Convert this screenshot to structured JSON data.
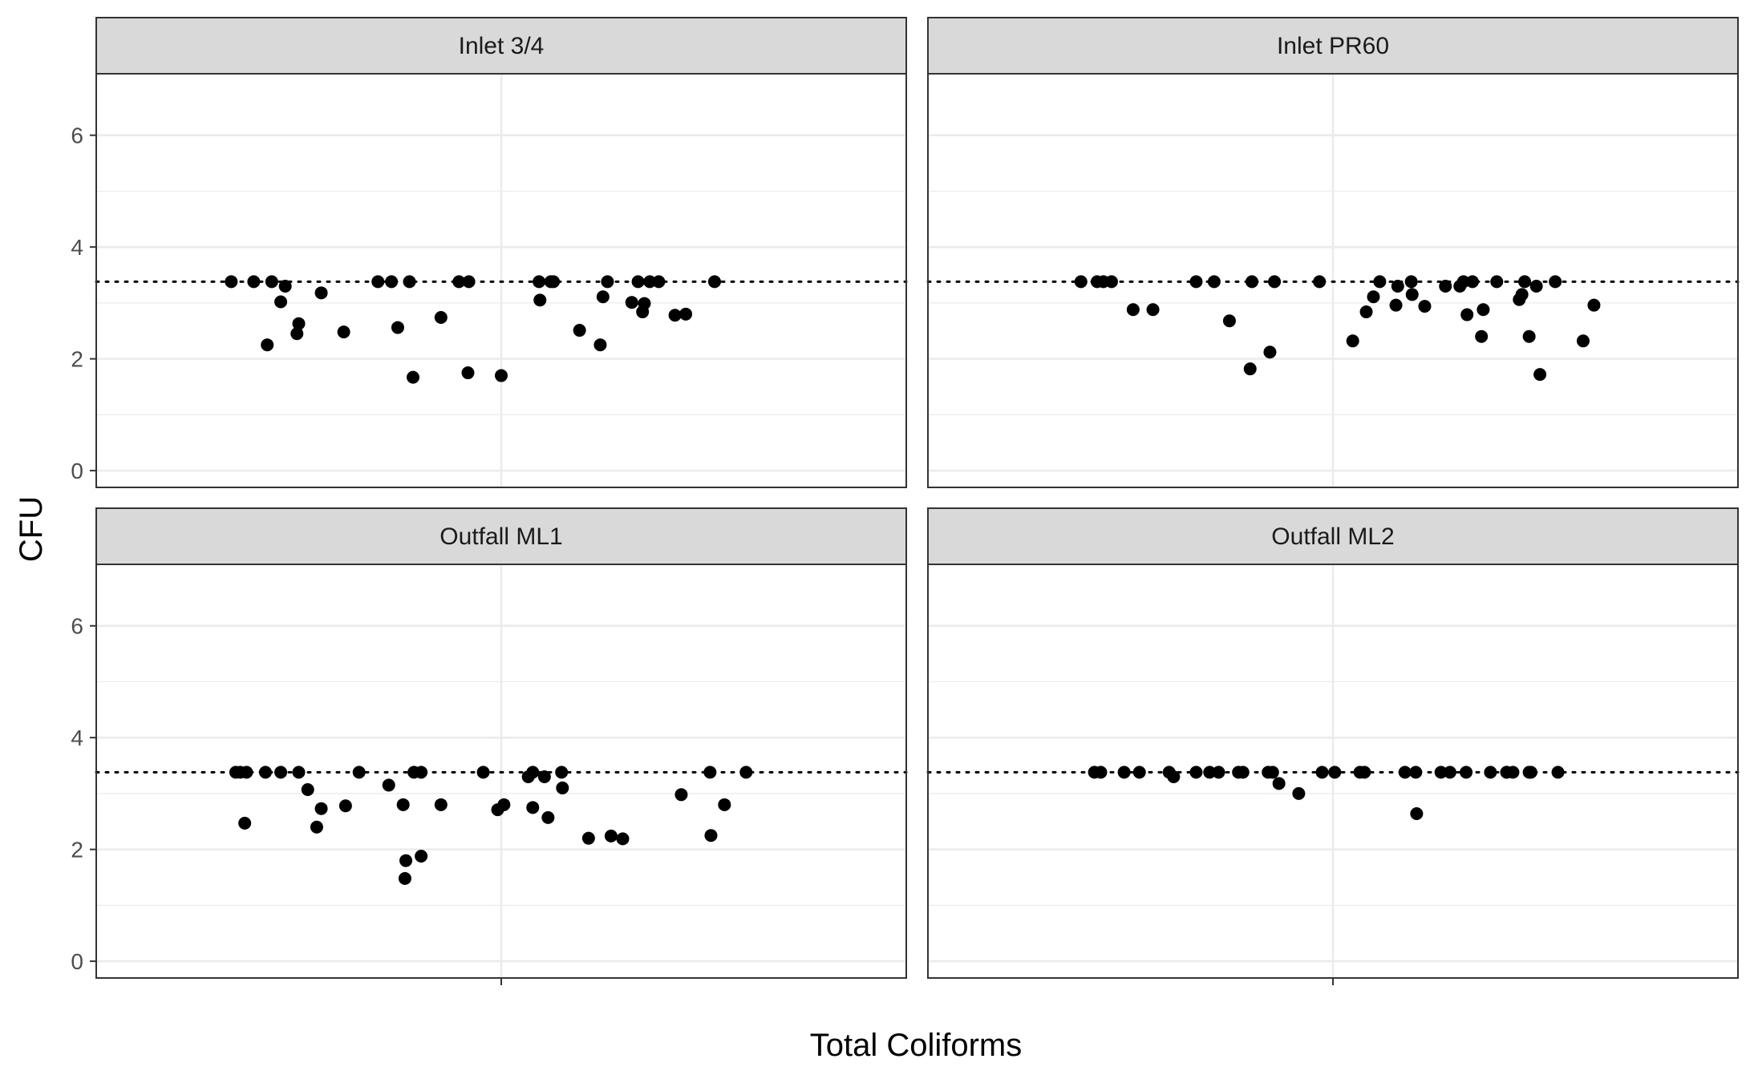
{
  "chart_data": {
    "type": "scatter",
    "subtype": "faceted jitter strip plot",
    "xlabel": "Total Coliforms",
    "ylabel": "CFU",
    "ylim": [
      -0.3,
      7.1
    ],
    "yticks": [
      0,
      2,
      4,
      6
    ],
    "grid": true,
    "theme": "black-and-white",
    "reference_line": {
      "y": 3.38,
      "style": "dotted",
      "color": "#000000"
    },
    "facet_layout": {
      "rows": 2,
      "cols": 2
    },
    "jitter_range": [
      -0.45,
      0.45
    ],
    "colors": {
      "point": "#000000",
      "strip_fill": "#d9d9d9",
      "border": "#333333",
      "grid": "#ebebeb"
    },
    "facets": [
      {
        "title": "Inlet 3/4",
        "points": [
          [
            -0.3,
            3.38
          ],
          [
            -0.275,
            3.38
          ],
          [
            -0.26,
            2.25
          ],
          [
            -0.255,
            3.38
          ],
          [
            -0.245,
            3.02
          ],
          [
            -0.24,
            3.3
          ],
          [
            -0.227,
            2.45
          ],
          [
            -0.225,
            2.63
          ],
          [
            -0.2,
            3.18
          ],
          [
            -0.175,
            2.48
          ],
          [
            -0.137,
            3.38
          ],
          [
            -0.122,
            3.38
          ],
          [
            -0.115,
            2.56
          ],
          [
            -0.102,
            3.38
          ],
          [
            -0.098,
            1.67
          ],
          [
            -0.067,
            2.74
          ],
          [
            -0.047,
            3.38
          ],
          [
            -0.036,
            3.38
          ],
          [
            -0.037,
            1.75
          ],
          [
            0.0,
            1.7
          ],
          [
            0.042,
            3.38
          ],
          [
            0.043,
            3.05
          ],
          [
            0.055,
            3.38
          ],
          [
            0.058,
            3.38
          ],
          [
            0.087,
            2.51
          ],
          [
            0.11,
            2.25
          ],
          [
            0.113,
            3.11
          ],
          [
            0.118,
            3.38
          ],
          [
            0.145,
            3.01
          ],
          [
            0.152,
            3.38
          ],
          [
            0.157,
            2.84
          ],
          [
            0.159,
            2.99
          ],
          [
            0.165,
            3.38
          ],
          [
            0.175,
            3.38
          ],
          [
            0.193,
            2.78
          ],
          [
            0.205,
            2.8
          ],
          [
            0.237,
            3.38
          ]
        ]
      },
      {
        "title": "Inlet PR60",
        "points": [
          [
            -0.28,
            3.38
          ],
          [
            -0.262,
            3.38
          ],
          [
            -0.255,
            3.38
          ],
          [
            -0.246,
            3.38
          ],
          [
            -0.222,
            2.88
          ],
          [
            -0.2,
            2.88
          ],
          [
            -0.152,
            3.38
          ],
          [
            -0.132,
            3.38
          ],
          [
            -0.115,
            2.68
          ],
          [
            -0.092,
            1.82
          ],
          [
            -0.09,
            3.38
          ],
          [
            -0.07,
            2.12
          ],
          [
            -0.065,
            3.38
          ],
          [
            -0.015,
            3.38
          ],
          [
            0.022,
            2.32
          ],
          [
            0.037,
            2.84
          ],
          [
            0.045,
            3.11
          ],
          [
            0.052,
            3.38
          ],
          [
            0.07,
            2.96
          ],
          [
            0.072,
            3.3
          ],
          [
            0.087,
            3.38
          ],
          [
            0.088,
            3.15
          ],
          [
            0.102,
            2.94
          ],
          [
            0.125,
            3.3
          ],
          [
            0.141,
            3.3
          ],
          [
            0.145,
            3.38
          ],
          [
            0.149,
            2.79
          ],
          [
            0.155,
            3.38
          ],
          [
            0.165,
            2.4
          ],
          [
            0.167,
            2.88
          ],
          [
            0.182,
            3.38
          ],
          [
            0.207,
            3.06
          ],
          [
            0.21,
            3.15
          ],
          [
            0.213,
            3.38
          ],
          [
            0.218,
            2.4
          ],
          [
            0.226,
            3.3
          ],
          [
            0.23,
            1.72
          ],
          [
            0.247,
            3.38
          ],
          [
            0.278,
            2.32
          ],
          [
            0.29,
            2.96
          ]
        ]
      },
      {
        "title": "Outfall ML1",
        "points": [
          [
            -0.295,
            3.38
          ],
          [
            -0.29,
            3.38
          ],
          [
            -0.285,
            2.47
          ],
          [
            -0.283,
            3.38
          ],
          [
            -0.262,
            3.38
          ],
          [
            -0.245,
            3.38
          ],
          [
            -0.225,
            3.38
          ],
          [
            -0.215,
            3.07
          ],
          [
            -0.205,
            2.4
          ],
          [
            -0.2,
            2.73
          ],
          [
            -0.173,
            2.78
          ],
          [
            -0.158,
            3.38
          ],
          [
            -0.125,
            3.15
          ],
          [
            -0.109,
            2.8
          ],
          [
            -0.106,
            1.8
          ],
          [
            -0.107,
            1.48
          ],
          [
            -0.097,
            3.38
          ],
          [
            -0.089,
            3.38
          ],
          [
            -0.089,
            1.88
          ],
          [
            -0.067,
            2.8
          ],
          [
            -0.02,
            3.38
          ],
          [
            -0.004,
            2.71
          ],
          [
            0.003,
            2.8
          ],
          [
            0.03,
            3.3
          ],
          [
            0.035,
            3.38
          ],
          [
            0.035,
            2.75
          ],
          [
            0.048,
            3.3
          ],
          [
            0.052,
            2.57
          ],
          [
            0.067,
            3.38
          ],
          [
            0.068,
            3.1
          ],
          [
            0.097,
            2.2
          ],
          [
            0.122,
            2.24
          ],
          [
            0.135,
            2.19
          ],
          [
            0.2,
            2.98
          ],
          [
            0.232,
            3.38
          ],
          [
            0.233,
            2.25
          ],
          [
            0.248,
            2.8
          ],
          [
            0.272,
            3.38
          ]
        ]
      },
      {
        "title": "Outfall ML2",
        "points": [
          [
            -0.265,
            3.38
          ],
          [
            -0.258,
            3.38
          ],
          [
            -0.232,
            3.38
          ],
          [
            -0.215,
            3.38
          ],
          [
            -0.182,
            3.38
          ],
          [
            -0.177,
            3.3
          ],
          [
            -0.152,
            3.38
          ],
          [
            -0.137,
            3.38
          ],
          [
            -0.127,
            3.38
          ],
          [
            -0.105,
            3.38
          ],
          [
            -0.1,
            3.38
          ],
          [
            -0.072,
            3.38
          ],
          [
            -0.067,
            3.38
          ],
          [
            -0.06,
            3.18
          ],
          [
            -0.038,
            3.0
          ],
          [
            -0.012,
            3.38
          ],
          [
            0.002,
            3.38
          ],
          [
            0.03,
            3.38
          ],
          [
            0.035,
            3.38
          ],
          [
            0.08,
            3.38
          ],
          [
            0.092,
            3.38
          ],
          [
            0.093,
            2.64
          ],
          [
            0.13,
            3.38
          ],
          [
            0.12,
            3.38
          ],
          [
            0.148,
            3.38
          ],
          [
            0.175,
            3.38
          ],
          [
            0.193,
            3.38
          ],
          [
            0.193,
            3.38
          ],
          [
            0.2,
            3.38
          ],
          [
            0.218,
            3.38
          ],
          [
            0.22,
            3.38
          ],
          [
            0.25,
            3.38
          ]
        ]
      }
    ]
  }
}
